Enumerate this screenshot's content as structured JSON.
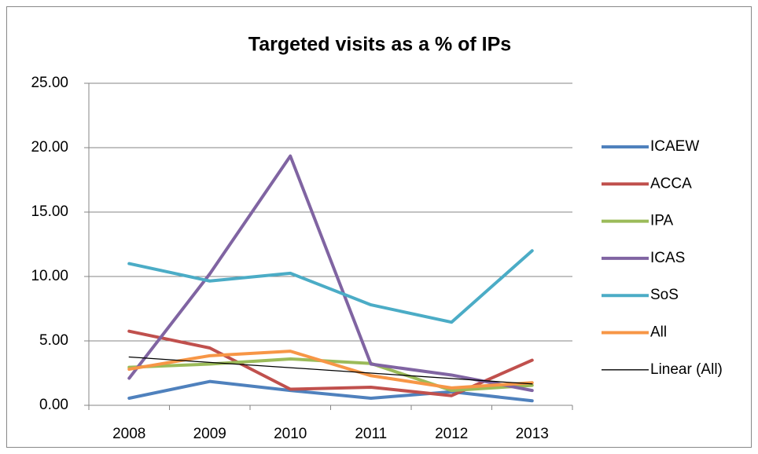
{
  "chart_data": {
    "type": "line",
    "title": "Targeted visits as a % of IPs",
    "categories": [
      "2008",
      "2009",
      "2010",
      "2011",
      "2012",
      "2013"
    ],
    "series": [
      {
        "name": "ICAEW",
        "color": "#4f81bd",
        "values": [
          0.55,
          1.85,
          1.15,
          0.55,
          1.05,
          0.35
        ]
      },
      {
        "name": "ACCA",
        "color": "#c0504d",
        "values": [
          5.75,
          4.45,
          1.25,
          1.4,
          0.75,
          3.5
        ]
      },
      {
        "name": "IPA",
        "color": "#9bbb59",
        "values": [
          2.95,
          3.2,
          3.6,
          3.25,
          1.15,
          1.55
        ]
      },
      {
        "name": "ICAS",
        "color": "#8064a2",
        "values": [
          2.1,
          10.2,
          19.35,
          3.2,
          2.35,
          1.15
        ]
      },
      {
        "name": "SoS",
        "color": "#4bacc6",
        "values": [
          11.0,
          9.65,
          10.25,
          7.8,
          6.45,
          12.0
        ]
      },
      {
        "name": "All",
        "color": "#f79646",
        "values": [
          2.8,
          3.85,
          4.2,
          2.3,
          1.35,
          1.75
        ]
      },
      {
        "name": "Linear (All)",
        "color": "#000000",
        "values": [
          3.75,
          3.33,
          2.92,
          2.5,
          2.08,
          1.66
        ]
      }
    ],
    "ylim": [
      0,
      25
    ],
    "yticks": [
      {
        "value": 0,
        "label": "0.00"
      },
      {
        "value": 5,
        "label": "5.00"
      },
      {
        "value": 10,
        "label": "10.00"
      },
      {
        "value": 15,
        "label": "15.00"
      },
      {
        "value": 20,
        "label": "20.00"
      },
      {
        "value": 25,
        "label": "25.00"
      }
    ],
    "grid": true,
    "legend": "right"
  }
}
